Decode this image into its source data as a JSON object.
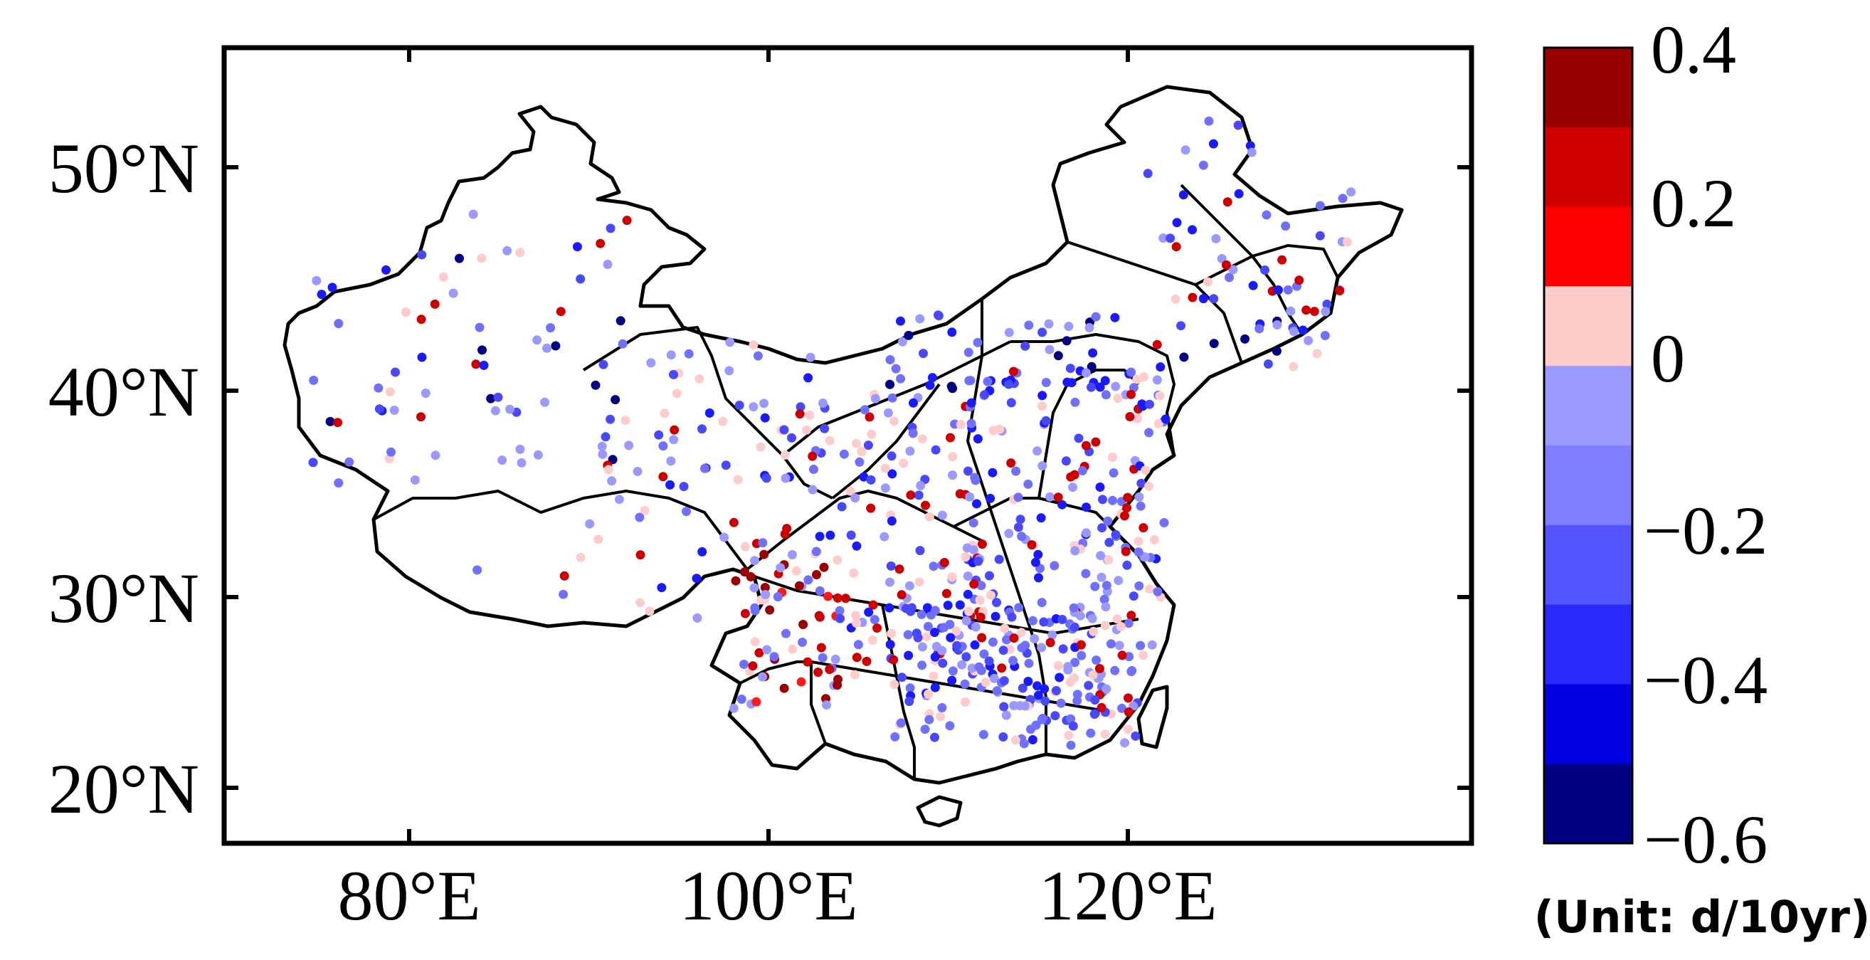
{
  "map": {
    "x_ticks": [
      {
        "lon": 80,
        "label": "80°E"
      },
      {
        "lon": 100,
        "label": "100°E"
      },
      {
        "lon": 120,
        "label": "120°E"
      }
    ],
    "y_ticks": [
      {
        "lat": 50,
        "label": "50°N"
      },
      {
        "lat": 40,
        "label": "40°N"
      },
      {
        "lat": 30,
        "label": "30°N"
      },
      {
        "lat": 20,
        "label": "20°N"
      }
    ],
    "extent": {
      "lon_min": 70,
      "lon_max": 140,
      "lat_min": 17,
      "lat_max": 56
    }
  },
  "colorbar": {
    "labels": [
      {
        "value": 0.4,
        "label": "0.4"
      },
      {
        "value": 0.2,
        "label": "0.2"
      },
      {
        "value": 0,
        "label": "0"
      },
      {
        "value": -0.2,
        "label": "−0.2"
      },
      {
        "value": -0.4,
        "label": "−0.4"
      },
      {
        "value": -0.6,
        "label": "−0.6"
      }
    ],
    "unit": "(Unit: d/10yr)",
    "range": [
      -0.6,
      0.4
    ],
    "colors_top_to_bottom": [
      "#990000",
      "#cc0000",
      "#ff0000",
      "#ffcccc",
      "#9999ff",
      "#7f7fff",
      "#5555ff",
      "#2a2aff",
      "#0000e0",
      "#000080"
    ]
  },
  "legend_colors": {
    "dark_red": "#990000",
    "red": "#cc0000",
    "bright_red": "#ff1a1a",
    "pink": "#ffcccc",
    "light_blue": "#9999ff",
    "medium_blue": "#7070ff",
    "blue": "#4848ff",
    "strong_blue": "#1a1aff",
    "navy": "#000080"
  }
}
